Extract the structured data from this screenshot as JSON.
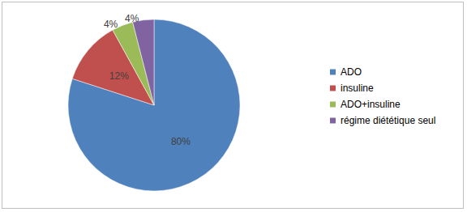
{
  "chart_data": {
    "type": "pie",
    "categories": [
      "ADO",
      "insuline",
      "ADO+insuline",
      "régime diététique seul"
    ],
    "values": [
      80,
      12,
      4,
      4
    ],
    "value_labels": [
      "80%",
      "12%",
      "4%",
      "4%"
    ],
    "colors": [
      "#4f81bd",
      "#c0504d",
      "#9bbb59",
      "#8064a2"
    ],
    "data_labels": true,
    "legend": "right"
  }
}
